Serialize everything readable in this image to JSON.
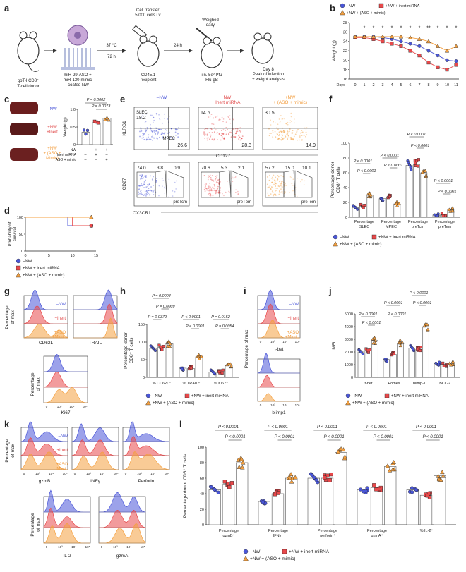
{
  "colors": {
    "nw": "#4a56d8",
    "inert": "#e8484a",
    "aso": "#f4a040",
    "bar_nw": "#7b84e8",
    "bar_inert": "#f28a8a",
    "bar_aso": "#f8c080"
  },
  "panel_labels": [
    "a",
    "b",
    "c",
    "d",
    "e",
    "f",
    "g",
    "h",
    "i",
    "j",
    "k",
    "l"
  ],
  "a": {
    "donor": "gbT-I CD8⁺\nT-cell donor",
    "nw": "miR-29-ASO +\nmiR-130-mimic\n-coated NW",
    "step1_top": "37 °C",
    "step1_bot": "72 h",
    "transfer": "Cell transfer:\n5,000 cells i.v.",
    "recipient": "CD45.1\nrecipient",
    "step2": "24 h",
    "weighed": "Weighed\ndaily",
    "infect": "i.n. 5e² Pfu\nFlu-gB",
    "day8": "Day 8\nPeak of infection\n+ weight analysis"
  },
  "legend": {
    "nw": "–NW",
    "inert": "+NW + inert miRNA",
    "aso": "+NW + (ASO + mimic)"
  },
  "b": {
    "ylabel": "Weight (g)",
    "xlabel": "Days",
    "stars": [
      "*",
      "*",
      "*",
      "*",
      "*",
      "*",
      "*",
      "**",
      "*",
      "*",
      "*"
    ],
    "chart_data": {
      "type": "line",
      "x": [
        0,
        1,
        2,
        3,
        4,
        5,
        6,
        7,
        8,
        9,
        10,
        11
      ],
      "ylim": [
        16,
        28
      ],
      "yticks": [
        16,
        18,
        20,
        22,
        24,
        26,
        28
      ],
      "series": [
        {
          "name": "–NW",
          "values": [
            25,
            25,
            25,
            24.8,
            24.5,
            24,
            23.5,
            23,
            22,
            21,
            20,
            19.8
          ]
        },
        {
          "name": "+NW + inert miRNA",
          "values": [
            24.8,
            24.8,
            24.5,
            24,
            23.5,
            23,
            22,
            21,
            19.5,
            18.5,
            18,
            19
          ]
        },
        {
          "name": "+NW + (ASO + mimic)",
          "values": [
            25,
            25,
            25,
            25,
            25,
            25,
            24.8,
            24.5,
            24,
            23,
            22,
            23
          ]
        }
      ]
    }
  },
  "c": {
    "labels": [
      "–NW",
      "+NW\n+Inert",
      "+NW\n+ (ASO +\nMimic)"
    ],
    "ylabel": "Weight (g)",
    "p1": "P = 0.0002",
    "p2": "P = 0.0073",
    "rows": [
      {
        "name": "NW",
        "vals": [
          "–",
          "+",
          "+"
        ]
      },
      {
        "name": "Inert miRNA",
        "vals": [
          "–",
          "+",
          "–"
        ]
      },
      {
        "name": "ASO + mimic",
        "vals": [
          "–",
          "–",
          "+"
        ]
      }
    ],
    "chart_data": {
      "type": "bar",
      "categories": [
        "–NW",
        "+NW + inert",
        "+NW + (ASO + mimic)"
      ],
      "values": [
        0.35,
        0.62,
        0.75
      ],
      "ylim": [
        0,
        1.0
      ],
      "yticks": [
        "0",
        "0.5",
        "1.0"
      ]
    }
  },
  "d": {
    "ylabel": "Probability of survival",
    "chart_data": {
      "type": "line",
      "x": [
        0,
        5,
        10,
        15
      ],
      "yticks": [
        0,
        50,
        100
      ],
      "xticks": [
        0,
        5,
        10,
        15
      ]
    }
  },
  "e": {
    "titles": [
      "–NW",
      "+NW\n+ Inert miRNA",
      "+NW\n+ (ASO + mimic)"
    ],
    "top": [
      {
        "slec": "SLEC",
        "v1": "18.2",
        "mpec": "MPEC",
        "v2": "26.6"
      },
      {
        "v1": "14.6",
        "v2": "28.3"
      },
      {
        "v1": "30.5",
        "v2": "14.9"
      }
    ],
    "top_y": "KLRG1",
    "top_x": "CD127",
    "bot": [
      {
        "a": "74.0",
        "b": "3.8",
        "c": "0.9",
        "name": "preTcm"
      },
      {
        "a": "70.6",
        "b": "5.3",
        "c": "2.1",
        "name": "preTpm"
      },
      {
        "a": "57.2",
        "b": "15.0",
        "c": "10.1",
        "name": "preTem"
      }
    ],
    "bot_y": "CD27",
    "bot_x": "CX3CR1"
  },
  "f": {
    "ylabel": "Percentage donor\nCD8⁺ T cells",
    "groups": [
      "Percentage\nSLEC",
      "Percentage\nMPEC",
      "Percentage\npreTcm",
      "Percentage\npreTem"
    ],
    "p": "P < 0.0001",
    "chart_data": {
      "type": "bar",
      "categories": [
        "SLEC",
        "MPEC",
        "preTcm",
        "preTem"
      ],
      "series": [
        {
          "name": "–NW",
          "values": [
            13,
            25,
            70,
            3
          ]
        },
        {
          "name": "+NW + inert miRNA",
          "values": [
            15,
            27,
            72,
            3
          ]
        },
        {
          "name": "+NW + (ASO + mimic)",
          "values": [
            30,
            18,
            60,
            10
          ]
        }
      ],
      "ylim": [
        0,
        100
      ],
      "yticks": [
        0,
        20,
        40,
        60,
        80,
        100
      ]
    }
  },
  "g": {
    "ylabel": "Percentage\nof max",
    "labels": [
      "–NW",
      "+Inert",
      "+ASO\n+Mimic"
    ],
    "x": [
      "CD62L",
      "TRAIL",
      "Ki67"
    ]
  },
  "h": {
    "ylabel": "Percentage donor\nCD8⁺ T cells",
    "groups": [
      "% CD62L⁻",
      "% TRAIL⁺",
      "% Ki67⁺"
    ],
    "p": [
      "P = 0.0004",
      "P = 0.0009",
      "P = 0.0379",
      "P < 0.0001",
      "P < 0.0001",
      "P = 0.0152",
      "P = 0.0054"
    ],
    "chart_data": {
      "type": "bar",
      "categories": [
        "% CD62L⁻",
        "% TRAIL⁺",
        "% Ki67⁺"
      ],
      "series": [
        {
          "name": "–NW",
          "values": [
            82,
            26,
            15
          ]
        },
        {
          "name": "+NW + inert miRNA",
          "values": [
            85,
            25,
            15
          ]
        },
        {
          "name": "+NW + (ASO + mimic)",
          "values": [
            95,
            58,
            35
          ]
        }
      ],
      "ylim": [
        0,
        150
      ],
      "yticks": [
        0,
        50,
        100,
        150
      ]
    }
  },
  "i": {
    "ylabel": "Percentage of max",
    "labels": [
      "–NW",
      "+Inert",
      "+ASO\n+Mimic"
    ],
    "x": [
      "t-bet",
      "blimp1"
    ]
  },
  "j": {
    "ylabel": "MFI",
    "groups": [
      "t-bet",
      "Eomes",
      "blimp-1",
      "BCL-2"
    ],
    "p": [
      "P < 0.0001",
      "P < 0.0001",
      "P < 0.0001",
      "P < 0.0001",
      "P < 0.0001",
      "P < 0.0001"
    ],
    "chart_data": {
      "type": "bar",
      "categories": [
        "t-bet",
        "Eomes",
        "blimp-1",
        "BCL-2"
      ],
      "series": [
        {
          "name": "–NW",
          "values": [
            2000,
            1400,
            2300,
            1100
          ]
        },
        {
          "name": "+NW + inert miRNA",
          "values": [
            2100,
            1800,
            2200,
            1000
          ]
        },
        {
          "name": "+NW + (ASO + mimic)",
          "values": [
            2900,
            2700,
            4000,
            1100
          ]
        }
      ],
      "ylim": [
        0,
        5000
      ],
      "yticks": [
        0,
        1000,
        2000,
        3000,
        4000,
        5000
      ]
    }
  },
  "k": {
    "ylabel": "Percentage\nof max",
    "labels": [
      "–NW",
      "+Inert",
      "+ASO\nMimic"
    ],
    "x": [
      "gzmB",
      "INFγ",
      "Perforin",
      "IL-2",
      "gzmA"
    ]
  },
  "l": {
    "ylabel": "Percentage donor CD8⁺ T cells",
    "groups": [
      "Percentage\ngzmB⁺",
      "Percentage\nIFNγ⁺",
      "Percentage\nperforin⁺",
      "Percentage\ngzmA⁺",
      "% IL-2⁺"
    ],
    "p": "P < 0.0001",
    "chart_data": {
      "type": "bar",
      "categories": [
        "gzmB",
        "IFNγ",
        "perforin",
        "gzmA",
        "IL-2"
      ],
      "series": [
        {
          "name": "–NW",
          "values": [
            45,
            30,
            60,
            45,
            45
          ]
        },
        {
          "name": "+NW + inert miRNA",
          "values": [
            52,
            40,
            60,
            48,
            38
          ]
        },
        {
          "name": "+NW + (ASO + mimic)",
          "values": [
            80,
            60,
            93,
            75,
            63
          ]
        }
      ],
      "ylim": [
        0,
        100
      ],
      "yticks": [
        0,
        20,
        40,
        60,
        80,
        100
      ]
    }
  }
}
